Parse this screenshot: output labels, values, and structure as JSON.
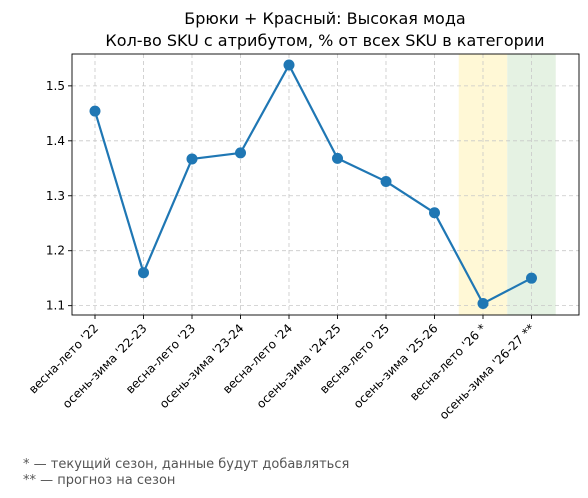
{
  "chart_data": {
    "type": "line",
    "title": "Брюки + Красный: Высокая мода",
    "subtitle": "Кол-во SKU с атрибутом, % от всех SKU в категории",
    "categories": [
      "весна-лето '22",
      "осень-зима '22-23",
      "весна-лето '23",
      "осень-зима '23-24",
      "весна-лето '24",
      "осень-зима '24-25",
      "весна-лето '25",
      "осень-зима '25-26",
      "весна-лето '26 *",
      "осень-зима '26-27 **"
    ],
    "values": [
      1.454,
      1.16,
      1.367,
      1.378,
      1.538,
      1.368,
      1.326,
      1.269,
      1.104,
      1.15
    ],
    "ylim": [
      1.083,
      1.558
    ],
    "yticks": [
      "1.1",
      "1.2",
      "1.3",
      "1.4",
      "1.5"
    ],
    "grid": true,
    "line_color": "#1f77b4",
    "highlights": [
      {
        "category_index": 8,
        "color": "#fff8d6",
        "meaning": "current season"
      },
      {
        "category_index": 9,
        "color": "#e5f2e3",
        "meaning": "forecast"
      }
    ]
  },
  "footnotes": {
    "current": "* — текущий сезон, данные будут добавляться",
    "forecast": "** — прогноз на сезон"
  }
}
